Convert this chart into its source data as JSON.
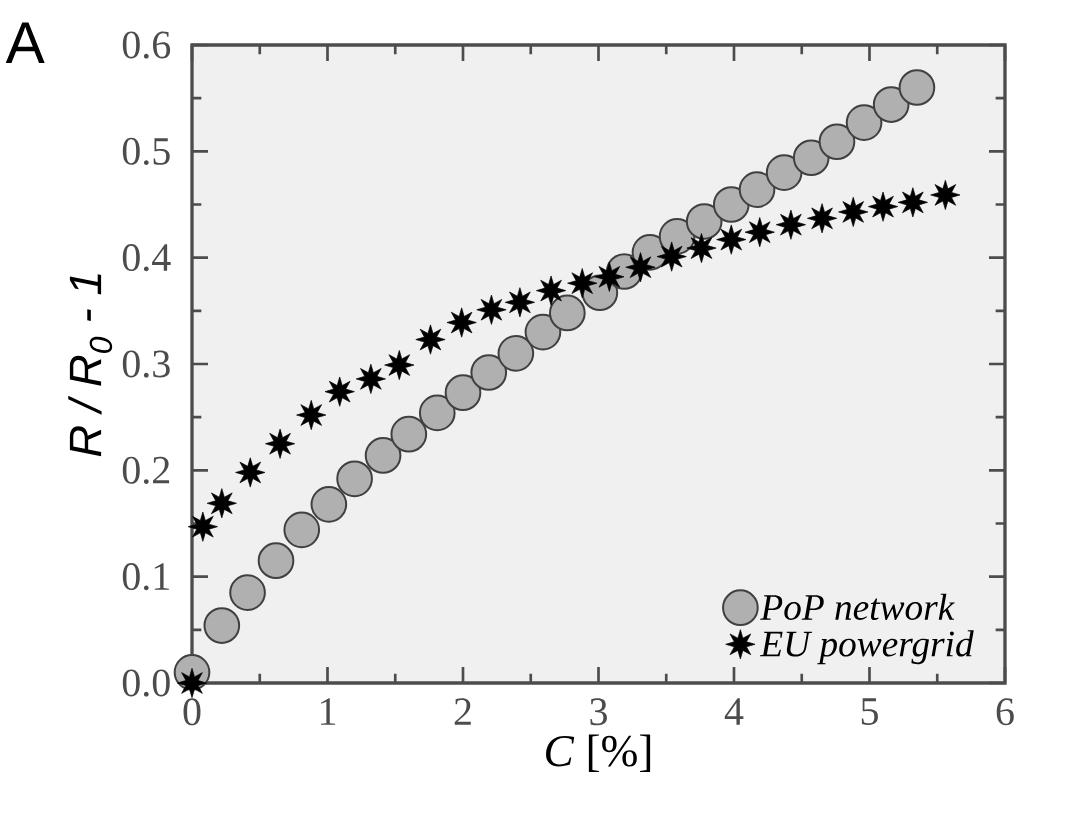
{
  "chart_data": {
    "type": "scatter",
    "title": "A",
    "xlabel": "*C* [%]",
    "ylabel": "R / R$_{0}$ - 1",
    "xlim": [
      0,
      6
    ],
    "ylim": [
      0,
      0.6
    ],
    "xticks": [
      0,
      1,
      2,
      3,
      4,
      5,
      6
    ],
    "yticks": [
      {
        "value": 0,
        "label": "0.0"
      },
      0.1,
      0.2,
      0.3,
      0.4,
      0.5,
      0.6
    ],
    "grid": false,
    "legend": "bottom right",
    "series": [
      {
        "name": "PoP network",
        "color": "#b0b0b0",
        "marker": "circle",
        "x": [
          0.0,
          0.22,
          0.41,
          0.62,
          0.81,
          1.01,
          1.2,
          1.41,
          1.6,
          1.81,
          2.0,
          2.19,
          2.39,
          2.59,
          2.77,
          3.01,
          3.19,
          3.38,
          3.58,
          3.78,
          3.98,
          4.17,
          4.37,
          4.57,
          4.76,
          4.96,
          5.16,
          5.35
        ],
        "values": [
          0.01,
          0.054,
          0.085,
          0.115,
          0.144,
          0.168,
          0.192,
          0.214,
          0.234,
          0.254,
          0.273,
          0.292,
          0.31,
          0.33,
          0.348,
          0.367,
          0.387,
          0.405,
          0.42,
          0.434,
          0.45,
          0.464,
          0.48,
          0.494,
          0.509,
          0.527,
          0.544,
          0.56
        ]
      },
      {
        "name": "EU powergrid",
        "color": "#000000",
        "marker": "star",
        "x": [
          0.0,
          0.08,
          0.22,
          0.43,
          0.65,
          0.88,
          1.09,
          1.32,
          1.53,
          1.76,
          1.99,
          2.21,
          2.42,
          2.65,
          2.88,
          3.08,
          3.31,
          3.54,
          3.76,
          3.98,
          4.19,
          4.42,
          4.65,
          4.88,
          5.1,
          5.32,
          5.56
        ],
        "values": [
          0.0,
          0.147,
          0.169,
          0.198,
          0.225,
          0.252,
          0.274,
          0.286,
          0.299,
          0.323,
          0.339,
          0.351,
          0.358,
          0.369,
          0.376,
          0.382,
          0.391,
          0.401,
          0.409,
          0.417,
          0.424,
          0.431,
          0.437,
          0.443,
          0.448,
          0.452,
          0.459
        ]
      }
    ]
  }
}
